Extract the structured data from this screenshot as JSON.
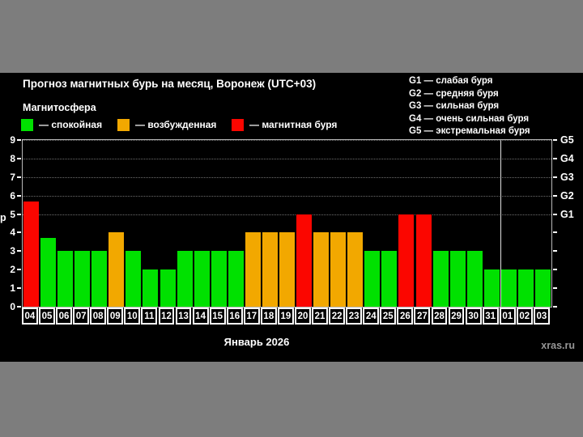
{
  "header": {
    "title": "Прогноз магнитных бурь на месяц, Воронеж (UTC+03)",
    "subtitle": "Магнитосфера"
  },
  "legend": {
    "items": [
      {
        "key": "quiet",
        "label": "— спокойная",
        "color": "#00e100"
      },
      {
        "key": "excited",
        "label": "— возбужденная",
        "color": "#f2a800"
      },
      {
        "key": "storm",
        "label": "— магнитная буря",
        "color": "#fb0600"
      }
    ]
  },
  "g_scale_legend": {
    "lines": [
      "G1 — слабая буря",
      "G2 — средняя буря",
      "G3 — сильная буря",
      "G4 — очень сильная буря",
      "G5 — экстремальная буря"
    ]
  },
  "chart_data": {
    "type": "bar",
    "title": "Прогноз магнитных бурь на месяц, Воронеж (UTC+03)",
    "categories": [
      "04",
      "05",
      "06",
      "07",
      "08",
      "09",
      "10",
      "11",
      "12",
      "13",
      "14",
      "15",
      "16",
      "17",
      "18",
      "19",
      "20",
      "21",
      "22",
      "23",
      "24",
      "25",
      "26",
      "27",
      "28",
      "29",
      "30",
      "31",
      "01",
      "02",
      "03"
    ],
    "values": [
      5.7,
      3.7,
      3,
      3,
      3,
      4,
      3,
      2,
      2,
      3,
      3,
      3,
      3,
      4,
      4,
      4,
      5,
      4,
      4,
      4,
      3,
      3,
      5,
      5,
      3,
      3,
      3,
      2,
      2,
      2,
      2
    ],
    "statuses": [
      "storm",
      "quiet",
      "quiet",
      "quiet",
      "quiet",
      "excited",
      "quiet",
      "quiet",
      "quiet",
      "quiet",
      "quiet",
      "quiet",
      "quiet",
      "excited",
      "excited",
      "excited",
      "storm",
      "excited",
      "excited",
      "excited",
      "quiet",
      "quiet",
      "storm",
      "storm",
      "quiet",
      "quiet",
      "quiet",
      "quiet",
      "quiet",
      "quiet",
      "quiet"
    ],
    "status_colors": {
      "quiet": "#00e100",
      "excited": "#f2a800",
      "storm": "#fb0600"
    },
    "ylim": [
      0,
      9
    ],
    "yticks_left": [
      "0",
      "1",
      "2",
      "3",
      "4",
      "5",
      "6",
      "7",
      "8",
      "9"
    ],
    "y_axis_label_visible": "p",
    "right_axis_labels": [
      {
        "value": 5,
        "label": "G1"
      },
      {
        "value": 6,
        "label": "G2"
      },
      {
        "value": 7,
        "label": "G3"
      },
      {
        "value": 8,
        "label": "G4"
      },
      {
        "value": 9,
        "label": "G5"
      }
    ],
    "gridline_values": [
      5,
      6,
      7,
      8,
      9
    ],
    "grid": "dotted",
    "month_separator_after_index": 27,
    "xlabel": "Январь 2026"
  },
  "footer": {
    "watermark": "xras.ru"
  }
}
